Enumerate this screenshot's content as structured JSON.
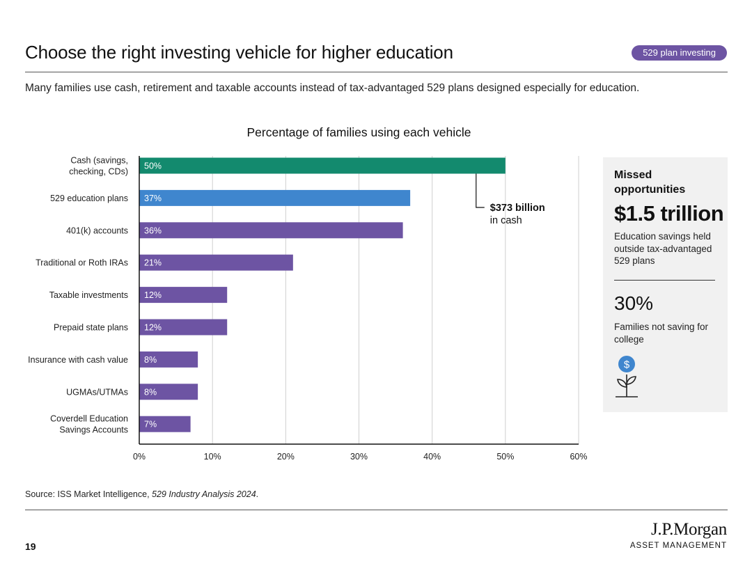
{
  "header": {
    "title": "Choose the right investing vehicle for higher education",
    "badge": "529 plan investing",
    "badge_color": "#6d54a3",
    "subtitle": "Many families use cash, retirement and taxable accounts instead of tax-advantaged 529 plans designed especially for education."
  },
  "chart_data": {
    "type": "bar",
    "orientation": "horizontal",
    "title": "Percentage of families using each vehicle",
    "categories": [
      [
        "Cash (savings,",
        "checking, CDs)"
      ],
      [
        "529 education plans"
      ],
      [
        "401(k) accounts"
      ],
      [
        "Traditional or Roth IRAs"
      ],
      [
        "Taxable investments"
      ],
      [
        "Prepaid state plans"
      ],
      [
        "Insurance with cash value"
      ],
      [
        "UGMAs/UTMAs"
      ],
      [
        "Coverdell Education",
        "Savings Accounts"
      ]
    ],
    "values": [
      50,
      37,
      36,
      21,
      12,
      12,
      8,
      8,
      7
    ],
    "value_labels": [
      "50%",
      "37%",
      "36%",
      "21%",
      "12%",
      "12%",
      "8%",
      "8%",
      "7%"
    ],
    "bar_colors": [
      "#138a6e",
      "#3f86ce",
      "#6d54a3",
      "#6d54a3",
      "#6d54a3",
      "#6d54a3",
      "#6d54a3",
      "#6d54a3",
      "#6d54a3"
    ],
    "xlim": [
      0,
      60
    ],
    "xticks": [
      0,
      10,
      20,
      30,
      40,
      50,
      60
    ],
    "xtick_labels": [
      "0%",
      "10%",
      "20%",
      "30%",
      "40%",
      "50%",
      "60%"
    ],
    "grid": true,
    "annotation": {
      "category_index": 0,
      "value": 46,
      "lines": [
        "$373 billion",
        "in cash"
      ]
    }
  },
  "sidebar": {
    "heading": "Missed opportunities",
    "big_value": "$1.5 trillion",
    "big_desc": "Education savings held outside tax-advantaged 529 plans",
    "pct_value": "30%",
    "pct_desc": "Families not saving for college",
    "icon": "money-plant-icon",
    "icon_color": "#3f86ce"
  },
  "footer": {
    "source_prefix": "Source: ISS Market Intelligence, ",
    "source_italic": "529 Industry Analysis 2024",
    "source_suffix": ".",
    "page_number": "19",
    "logo": "J.P.Morgan",
    "logo_sub": "ASSET MANAGEMENT"
  }
}
